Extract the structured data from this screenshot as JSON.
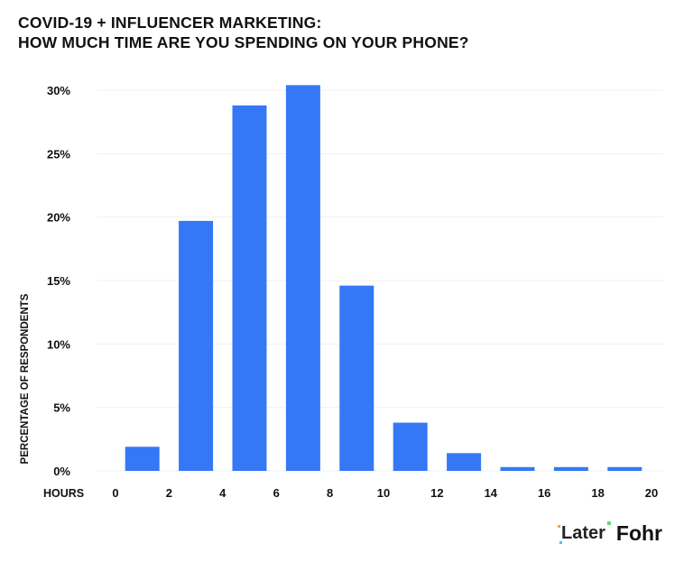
{
  "chart_data": {
    "type": "bar",
    "title": [
      "COVID-19 + INFLUENCER MARKETING:",
      "HOW MUCH TIME ARE YOU SPENDING ON YOUR PHONE?"
    ],
    "xlabel": "HOURS",
    "ylabel": "PERCENTAGE OF RESPONDENTS",
    "x_bins": [
      [
        0,
        2
      ],
      [
        2,
        4
      ],
      [
        4,
        6
      ],
      [
        6,
        8
      ],
      [
        8,
        10
      ],
      [
        10,
        12
      ],
      [
        12,
        14
      ],
      [
        14,
        16
      ],
      [
        16,
        18
      ],
      [
        18,
        20
      ]
    ],
    "values": [
      1.9,
      19.7,
      28.8,
      30.4,
      14.6,
      3.8,
      1.4,
      0.3,
      0.3,
      0.3
    ],
    "xticks": [
      "0",
      "2",
      "4",
      "6",
      "8",
      "10",
      "12",
      "14",
      "16",
      "18",
      "20"
    ],
    "yticks": [
      "0%",
      "5%",
      "10%",
      "15%",
      "20%",
      "25%",
      "30%"
    ],
    "ylim": [
      0,
      30
    ],
    "xlim": [
      0,
      20
    ],
    "grid": true,
    "bar_color": "#3478f6"
  },
  "logos": {
    "later": "Later",
    "fohr": "Fohr"
  }
}
